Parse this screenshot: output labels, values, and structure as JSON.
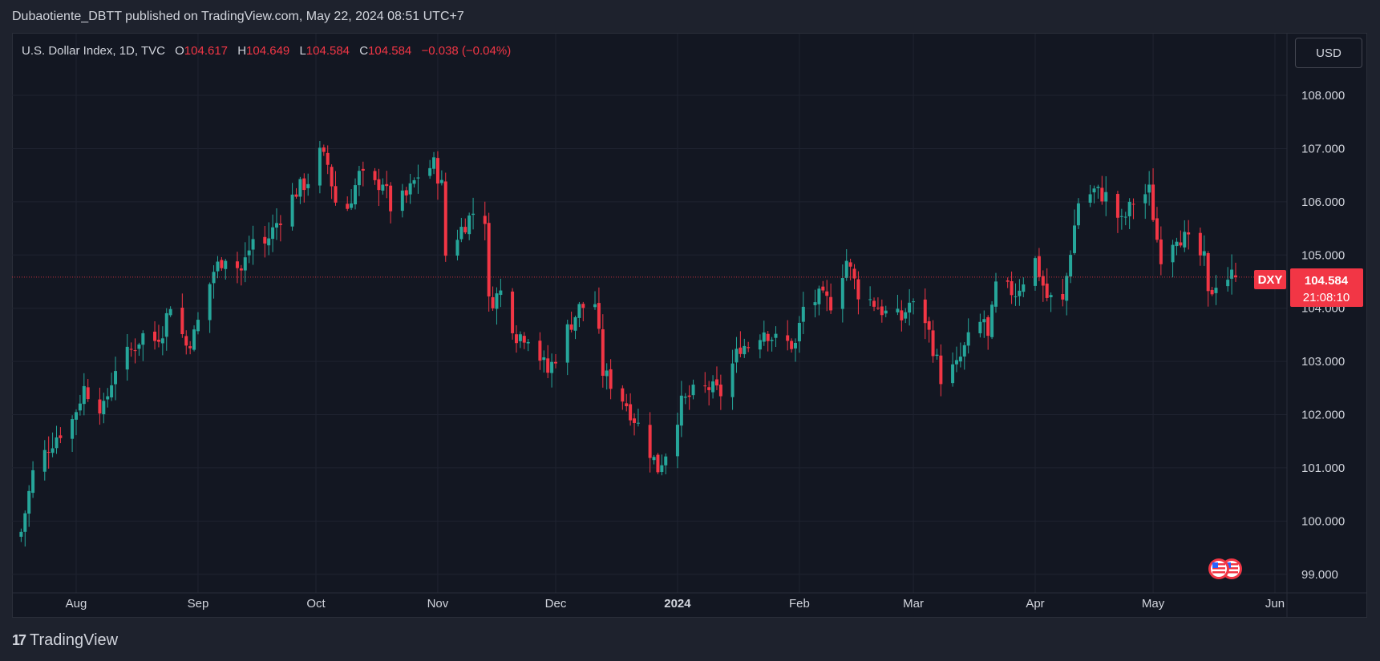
{
  "header": {
    "publisher_line": "Dubaotiente_DBTT published on TradingView.com, May 22, 2024 08:51 UTC+7"
  },
  "legend": {
    "symbol_line": "U.S. Dollar Index, 1D, TVC",
    "o_label": "O",
    "o_value": "104.617",
    "h_label": "H",
    "h_value": "104.649",
    "l_label": "L",
    "l_value": "104.584",
    "c_label": "C",
    "c_value": "104.584",
    "change": "−0.038 (−0.04%)"
  },
  "currency_button": "USD",
  "price_tag": {
    "symbol": "DXY",
    "price": "104.584",
    "countdown": "21:08:10"
  },
  "footer": {
    "brand": "TradingView",
    "logo_mark": "17"
  },
  "colors": {
    "up": "#26a69a",
    "down": "#f23645",
    "background": "#131722",
    "grid": "#1f2330",
    "text": "#d1d4dc"
  },
  "icons": {
    "flags": "us-flag-icon"
  },
  "chart_data": {
    "type": "candlestick",
    "title": "U.S. Dollar Index, 1D, TVC",
    "xlabel": "",
    "ylabel": "",
    "ylim": [
      98.65,
      109.16
    ],
    "y_ticks": [
      "99.000",
      "100.000",
      "101.000",
      "102.000",
      "103.000",
      "104.000",
      "105.000",
      "106.000",
      "107.000",
      "108.000"
    ],
    "x_ticks": [
      {
        "label": "Aug",
        "date": "2023-08-01"
      },
      {
        "label": "Sep",
        "date": "2023-09-01"
      },
      {
        "label": "Oct",
        "date": "2023-10-01"
      },
      {
        "label": "Nov",
        "date": "2023-11-01"
      },
      {
        "label": "Dec",
        "date": "2023-12-01"
      },
      {
        "label": "2024",
        "date": "2024-01-01"
      },
      {
        "label": "Feb",
        "date": "2024-02-01"
      },
      {
        "label": "Mar",
        "date": "2024-03-01"
      },
      {
        "label": "Apr",
        "date": "2024-04-01"
      },
      {
        "label": "May",
        "date": "2024-05-01"
      },
      {
        "label": "Jun",
        "date": "2024-06-01"
      }
    ],
    "last_price": 104.584,
    "close_path": [
      [
        "2023-07-18",
        99.8
      ],
      [
        "2023-07-21",
        100.9
      ],
      [
        "2023-07-25",
        101.4
      ],
      [
        "2023-07-27",
        101.6
      ],
      [
        "2023-07-31",
        101.9
      ],
      [
        "2023-08-03",
        102.5
      ],
      [
        "2023-08-08",
        102.1
      ],
      [
        "2023-08-11",
        102.9
      ],
      [
        "2023-08-15",
        103.2
      ],
      [
        "2023-08-18",
        103.5
      ],
      [
        "2023-08-21",
        103.4
      ],
      [
        "2023-08-23",
        103.6
      ],
      [
        "2023-08-25",
        104.1
      ],
      [
        "2023-08-29",
        103.3
      ],
      [
        "2023-08-31",
        103.5
      ],
      [
        "2023-09-05",
        104.7
      ],
      [
        "2023-09-08",
        105.0
      ],
      [
        "2023-09-12",
        104.7
      ],
      [
        "2023-09-15",
        105.3
      ],
      [
        "2023-09-18",
        105.2
      ],
      [
        "2023-09-21",
        105.6
      ],
      [
        "2023-09-26",
        106.2
      ],
      [
        "2023-09-29",
        106.4
      ],
      [
        "2023-10-02",
        106.9
      ],
      [
        "2023-10-04",
        106.7
      ],
      [
        "2023-10-06",
        106.0
      ],
      [
        "2023-10-09",
        105.9
      ],
      [
        "2023-10-12",
        106.5
      ],
      [
        "2023-10-16",
        106.3
      ],
      [
        "2023-10-18",
        106.4
      ],
      [
        "2023-10-20",
        105.9
      ],
      [
        "2023-10-24",
        106.1
      ],
      [
        "2023-10-27",
        106.5
      ],
      [
        "2023-10-31",
        106.7
      ],
      [
        "2023-11-02",
        106.3
      ],
      [
        "2023-11-03",
        105.0
      ],
      [
        "2023-11-07",
        105.5
      ],
      [
        "2023-11-10",
        105.8
      ],
      [
        "2023-11-13",
        105.7
      ],
      [
        "2023-11-14",
        104.1
      ],
      [
        "2023-11-17",
        104.3
      ],
      [
        "2023-11-21",
        103.5
      ],
      [
        "2023-11-24",
        103.5
      ],
      [
        "2023-11-29",
        102.8
      ],
      [
        "2023-12-01",
        103.1
      ],
      [
        "2023-12-04",
        103.6
      ],
      [
        "2023-12-07",
        104.0
      ],
      [
        "2023-12-11",
        104.1
      ],
      [
        "2023-12-13",
        102.8
      ],
      [
        "2023-12-15",
        102.6
      ],
      [
        "2023-12-19",
        102.2
      ],
      [
        "2023-12-22",
        101.8
      ],
      [
        "2023-12-27",
        100.99
      ],
      [
        "2023-12-29",
        101.3
      ],
      [
        "2024-01-02",
        102.2
      ],
      [
        "2024-01-05",
        102.4
      ],
      [
        "2024-01-09",
        102.5
      ],
      [
        "2024-01-12",
        102.4
      ],
      [
        "2024-01-17",
        103.3
      ],
      [
        "2024-01-19",
        103.3
      ],
      [
        "2024-01-23",
        103.6
      ],
      [
        "2024-01-26",
        103.4
      ],
      [
        "2024-01-31",
        103.3
      ],
      [
        "2024-02-02",
        104.0
      ],
      [
        "2024-02-06",
        104.2
      ],
      [
        "2024-02-09",
        104.1
      ],
      [
        "2024-02-13",
        104.9
      ],
      [
        "2024-02-16",
        104.3
      ],
      [
        "2024-02-20",
        104.1
      ],
      [
        "2024-02-23",
        103.9
      ],
      [
        "2024-02-27",
        103.8
      ],
      [
        "2024-02-29",
        104.1
      ],
      [
        "2024-03-04",
        103.8
      ],
      [
        "2024-03-07",
        103.0
      ],
      [
        "2024-03-08",
        102.7
      ],
      [
        "2024-03-12",
        102.9
      ],
      [
        "2024-03-15",
        103.4
      ],
      [
        "2024-03-19",
        103.8
      ],
      [
        "2024-03-20",
        103.4
      ],
      [
        "2024-03-22",
        104.4
      ],
      [
        "2024-03-27",
        104.3
      ],
      [
        "2024-04-01",
        104.9
      ],
      [
        "2024-04-04",
        104.2
      ],
      [
        "2024-04-08",
        104.1
      ],
      [
        "2024-04-10",
        105.1
      ],
      [
        "2024-04-12",
        106.0
      ],
      [
        "2024-04-16",
        106.2
      ],
      [
        "2024-04-19",
        106.1
      ],
      [
        "2024-04-23",
        105.6
      ],
      [
        "2024-04-26",
        106.0
      ],
      [
        "2024-04-30",
        106.2
      ],
      [
        "2024-05-02",
        105.3
      ],
      [
        "2024-05-03",
        105.0
      ],
      [
        "2024-05-07",
        105.4
      ],
      [
        "2024-05-09",
        105.3
      ],
      [
        "2024-05-14",
        104.9
      ],
      [
        "2024-05-15",
        104.2
      ],
      [
        "2024-05-17",
        104.5
      ],
      [
        "2024-05-21",
        104.617
      ],
      [
        "2024-05-22",
        104.584
      ]
    ]
  }
}
